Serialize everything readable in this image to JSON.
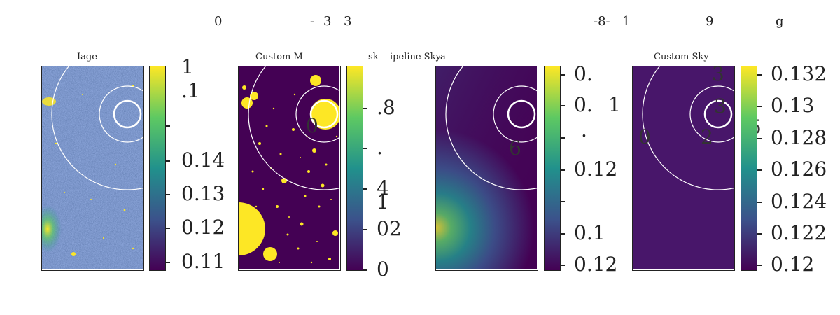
{
  "figure": {
    "top_labels": [
      "0",
      "-",
      "3",
      "3",
      "-8-",
      "1",
      "9",
      "g"
    ],
    "extra_labels": [
      "sk",
      "ipeline Sky",
      "a"
    ]
  },
  "colors": {
    "viridis_dark": "#440154",
    "viridis_blue": "#3b528b",
    "viridis_teal": "#21918c",
    "viridis_green": "#5ec962",
    "viridis_yellow": "#fde725",
    "ring": "#ffffff"
  },
  "panels": [
    {
      "title": "Iage",
      "colorbar_ticks": [
        "1",
        ".1",
        "",
        "0.14",
        "0.13",
        "0.12",
        "0.11"
      ],
      "overlay_labels": []
    },
    {
      "title": "Custom M",
      "colorbar_ticks": [
        ".8",
        ".",
        "4",
        "1",
        "02",
        "0"
      ],
      "overlay_labels": [
        "0"
      ]
    },
    {
      "title": "",
      "colorbar_ticks": [
        "0.",
        "0.",
        "1",
        ".",
        "0.12",
        "",
        "0.1",
        "0.12"
      ],
      "overlay_labels": [
        "6"
      ]
    },
    {
      "title": "Custom Sky",
      "colorbar_ticks": [
        "0.132",
        "0.13",
        "0.128",
        "0.126",
        "0.124",
        "0.122",
        "0.12"
      ],
      "overlay_labels": [
        "3",
        "3",
        "0",
        "2",
        "5"
      ]
    }
  ]
}
